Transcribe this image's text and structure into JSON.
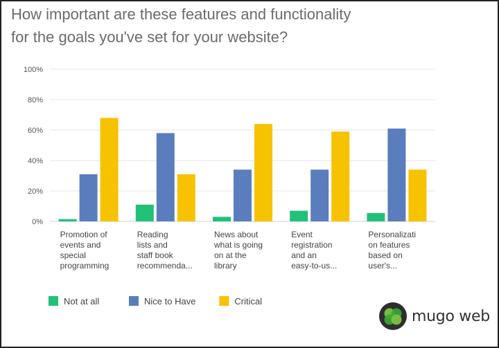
{
  "title_line1": "How important are these features and functionality",
  "title_line2": "for the goals you've set  for your website?",
  "chart_data": {
    "type": "bar",
    "categories": [
      [
        "Promotion of",
        "events and",
        "special",
        "programming"
      ],
      [
        "Reading",
        "lists and",
        "staff book",
        "recommenda..."
      ],
      [
        "News about",
        "what is going",
        "on at the",
        "library"
      ],
      [
        "Event",
        "registration",
        "and an",
        "easy-to-us..."
      ],
      [
        "Personalizati",
        "on features",
        "based on",
        "user's..."
      ]
    ],
    "series": [
      {
        "name": "Not at all",
        "color": "#21c17a",
        "values": [
          1.5,
          11,
          3,
          7,
          5.5
        ]
      },
      {
        "name": "Nice to Have",
        "color": "#5a7dbd",
        "values": [
          31,
          58,
          34,
          34,
          61
        ]
      },
      {
        "name": "Critical",
        "color": "#f7c200",
        "values": [
          68,
          31,
          64,
          59,
          34
        ]
      }
    ],
    "y_ticks": [
      "0%",
      "20%",
      "40%",
      "60%",
      "80%",
      "100%"
    ],
    "ylim": [
      0,
      100
    ],
    "grid": true,
    "legend": "bottom-left"
  },
  "logo": {
    "text": "mugo web"
  }
}
